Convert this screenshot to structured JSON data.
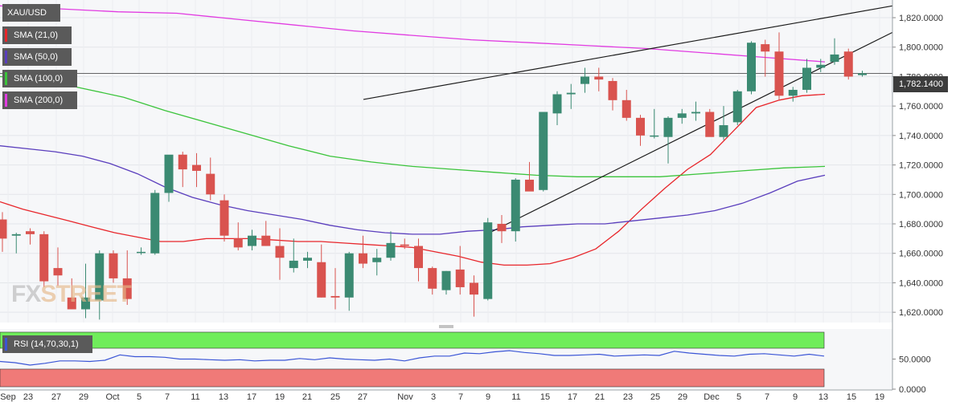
{
  "chart_data": {
    "type": "candlestick",
    "symbol": "XAU/USD",
    "x_tick_labels": [
      "Sep",
      "23",
      "27",
      "29",
      "Oct",
      "5",
      "7",
      "11",
      "13",
      "17",
      "19",
      "21",
      "25",
      "27",
      "Nov",
      "3",
      "7",
      "9",
      "11",
      "15",
      "17",
      "21",
      "23",
      "25",
      "29",
      "Dec",
      "5",
      "7",
      "9",
      "13",
      "15",
      "19"
    ],
    "y_tick_labels": [
      "1,820.0000",
      "1,800.0000",
      "1,780.0000",
      "1,760.0000",
      "1,740.0000",
      "1,720.0000",
      "1,700.0000",
      "1,680.0000",
      "1,660.0000",
      "1,640.0000",
      "1,620.0000"
    ],
    "ylim": [
      1613,
      1832
    ],
    "last_price_label": "1,782.1400",
    "last_price": 1782.14,
    "candles": [
      {
        "o": 1683,
        "h": 1688,
        "l": 1661,
        "c": 1670
      },
      {
        "o": 1672,
        "h": 1674,
        "l": 1660,
        "c": 1673
      },
      {
        "o": 1675,
        "h": 1677,
        "l": 1666,
        "c": 1673
      },
      {
        "o": 1673,
        "h": 1675,
        "l": 1637,
        "c": 1641
      },
      {
        "o": 1650,
        "h": 1664,
        "l": 1638,
        "c": 1645
      },
      {
        "o": 1630,
        "h": 1643,
        "l": 1622,
        "c": 1622
      },
      {
        "o": 1622,
        "h": 1653,
        "l": 1616,
        "c": 1630
      },
      {
        "o": 1628,
        "h": 1662,
        "l": 1615,
        "c": 1660
      },
      {
        "o": 1660,
        "h": 1662,
        "l": 1640,
        "c": 1643
      },
      {
        "o": 1643,
        "h": 1662,
        "l": 1625,
        "c": 1629
      },
      {
        "o": 1661,
        "h": 1664,
        "l": 1659,
        "c": 1661
      },
      {
        "o": 1660,
        "h": 1703,
        "l": 1659,
        "c": 1701
      },
      {
        "o": 1701,
        "h": 1725,
        "l": 1695,
        "c": 1727
      },
      {
        "o": 1727,
        "h": 1729,
        "l": 1705,
        "c": 1717
      },
      {
        "o": 1720,
        "h": 1728,
        "l": 1705,
        "c": 1716
      },
      {
        "o": 1714,
        "h": 1725,
        "l": 1696,
        "c": 1700
      },
      {
        "o": 1696,
        "h": 1700,
        "l": 1668,
        "c": 1672
      },
      {
        "o": 1670,
        "h": 1681,
        "l": 1662,
        "c": 1664
      },
      {
        "o": 1665,
        "h": 1676,
        "l": 1662,
        "c": 1672
      },
      {
        "o": 1672,
        "h": 1682,
        "l": 1665,
        "c": 1665
      },
      {
        "o": 1665,
        "h": 1677,
        "l": 1642,
        "c": 1657
      },
      {
        "o": 1650,
        "h": 1670,
        "l": 1647,
        "c": 1655
      },
      {
        "o": 1655,
        "h": 1661,
        "l": 1650,
        "c": 1657
      },
      {
        "o": 1654,
        "h": 1666,
        "l": 1630,
        "c": 1630
      },
      {
        "o": 1631,
        "h": 1650,
        "l": 1622,
        "c": 1630
      },
      {
        "o": 1630,
        "h": 1661,
        "l": 1621,
        "c": 1660
      },
      {
        "o": 1660,
        "h": 1672,
        "l": 1650,
        "c": 1653
      },
      {
        "o": 1654,
        "h": 1663,
        "l": 1645,
        "c": 1657
      },
      {
        "o": 1657,
        "h": 1675,
        "l": 1655,
        "c": 1667
      },
      {
        "o": 1666,
        "h": 1670,
        "l": 1663,
        "c": 1665
      },
      {
        "o": 1665,
        "h": 1670,
        "l": 1641,
        "c": 1650
      },
      {
        "o": 1650,
        "h": 1651,
        "l": 1632,
        "c": 1636
      },
      {
        "o": 1635,
        "h": 1648,
        "l": 1632,
        "c": 1648
      },
      {
        "o": 1649,
        "h": 1665,
        "l": 1632,
        "c": 1637
      },
      {
        "o": 1640,
        "h": 1645,
        "l": 1617,
        "c": 1632
      },
      {
        "o": 1629,
        "h": 1684,
        "l": 1628,
        "c": 1681
      },
      {
        "o": 1680,
        "h": 1686,
        "l": 1667,
        "c": 1675
      },
      {
        "o": 1675,
        "h": 1711,
        "l": 1668,
        "c": 1710
      },
      {
        "o": 1710,
        "h": 1722,
        "l": 1703,
        "c": 1702
      },
      {
        "o": 1703,
        "h": 1754,
        "l": 1702,
        "c": 1756
      },
      {
        "o": 1755,
        "h": 1770,
        "l": 1747,
        "c": 1768
      },
      {
        "o": 1768,
        "h": 1775,
        "l": 1758,
        "c": 1769
      },
      {
        "o": 1775,
        "h": 1786,
        "l": 1769,
        "c": 1780
      },
      {
        "o": 1780,
        "h": 1786,
        "l": 1770,
        "c": 1778
      },
      {
        "o": 1777,
        "h": 1779,
        "l": 1757,
        "c": 1764
      },
      {
        "o": 1764,
        "h": 1771,
        "l": 1750,
        "c": 1752
      },
      {
        "o": 1752,
        "h": 1754,
        "l": 1733,
        "c": 1740
      },
      {
        "o": 1740,
        "h": 1758,
        "l": 1738,
        "c": 1740
      },
      {
        "o": 1739,
        "h": 1753,
        "l": 1721,
        "c": 1752
      },
      {
        "o": 1752,
        "h": 1758,
        "l": 1748,
        "c": 1755
      },
      {
        "o": 1755,
        "h": 1763,
        "l": 1750,
        "c": 1756
      },
      {
        "o": 1756,
        "h": 1758,
        "l": 1740,
        "c": 1739
      },
      {
        "o": 1739,
        "h": 1760,
        "l": 1737,
        "c": 1747
      },
      {
        "o": 1749,
        "h": 1771,
        "l": 1747,
        "c": 1770
      },
      {
        "o": 1770,
        "h": 1804,
        "l": 1768,
        "c": 1803
      },
      {
        "o": 1802,
        "h": 1805,
        "l": 1780,
        "c": 1797
      },
      {
        "o": 1797,
        "h": 1810,
        "l": 1764,
        "c": 1767
      },
      {
        "o": 1767,
        "h": 1773,
        "l": 1763,
        "c": 1771
      },
      {
        "o": 1771,
        "h": 1792,
        "l": 1769,
        "c": 1786
      },
      {
        "o": 1786,
        "h": 1792,
        "l": 1783,
        "c": 1788
      },
      {
        "o": 1790,
        "h": 1806,
        "l": 1788,
        "c": 1795
      },
      {
        "o": 1797,
        "h": 1799,
        "l": 1778,
        "c": 1780
      },
      {
        "o": 1781,
        "h": 1784,
        "l": 1780,
        "c": 1782.14
      }
    ],
    "indicators": [
      {
        "name": "SMA (21,0)",
        "color": "#e8262b",
        "values": [
          1695,
          1690,
          1686,
          1682,
          1678,
          1674,
          1671,
          1668,
          1668,
          1670,
          1670,
          1670,
          1669,
          1668,
          1668,
          1667,
          1666,
          1665,
          1664,
          1661,
          1658,
          1654,
          1652,
          1652,
          1653,
          1657,
          1663,
          1675,
          1690,
          1704,
          1717,
          1727,
          1743,
          1759,
          1764,
          1767,
          1768
        ]
      },
      {
        "name": "SMA (50,0)",
        "color": "#5a3ebd",
        "values": [
          1733,
          1731,
          1729,
          1726,
          1721,
          1714,
          1705,
          1698,
          1693,
          1689,
          1686,
          1683,
          1679,
          1676,
          1674,
          1673,
          1673,
          1675,
          1676,
          1678,
          1679,
          1680,
          1680,
          1682,
          1684,
          1686,
          1689,
          1694,
          1701,
          1709,
          1713
        ]
      },
      {
        "name": "SMA (100,0)",
        "color": "#3bc43b",
        "values": [
          1780,
          1778,
          1772,
          1766,
          1757,
          1749,
          1741,
          1733,
          1726,
          1722,
          1719,
          1717,
          1715,
          1713,
          1712,
          1712,
          1712,
          1714,
          1716,
          1718,
          1719
        ]
      },
      {
        "name": "SMA (200,0)",
        "color": "#e13be1",
        "values": [
          1828,
          1826,
          1824,
          1823,
          1819,
          1815,
          1811,
          1808,
          1805,
          1803,
          1801,
          1799,
          1796,
          1793,
          1790
        ]
      }
    ],
    "rsi": {
      "name": "RSI (14,70,30,1)",
      "ylim": [
        0,
        100
      ],
      "y_tick_labels": [
        "50.0000",
        "0.0000"
      ],
      "upper_band": 70,
      "lower_band": 30,
      "values": [
        46,
        44,
        40,
        43,
        47,
        47,
        46,
        48,
        57,
        54,
        54,
        53,
        50,
        50,
        49,
        48,
        49,
        47,
        48,
        48,
        51,
        49,
        52,
        50,
        49,
        48,
        50,
        47,
        52,
        55,
        55,
        60,
        59,
        62,
        64,
        61,
        59,
        56,
        56,
        57,
        58,
        55,
        56,
        57,
        56,
        63,
        60,
        58,
        56,
        55,
        58,
        59,
        57,
        55,
        58,
        55
      ]
    },
    "grid": true
  },
  "legend": {
    "symbol": "XAU/USD",
    "items": [
      "SMA (21,0)",
      "SMA (50,0)",
      "SMA (100,0)",
      "SMA (200,0)"
    ]
  },
  "rsi_label": "RSI (14,70,30,1)",
  "watermark": {
    "part1": "FX",
    "part2": "STREET"
  },
  "colors": {
    "bull": "#3b8a72",
    "bear": "#d9534f",
    "rsi_line": "#3a55d6",
    "rsi_upper_zone": "#6fed5b",
    "rsi_lower_zone": "#f07a78",
    "trendline": "#1a1a1a",
    "price_line": "#333333"
  }
}
